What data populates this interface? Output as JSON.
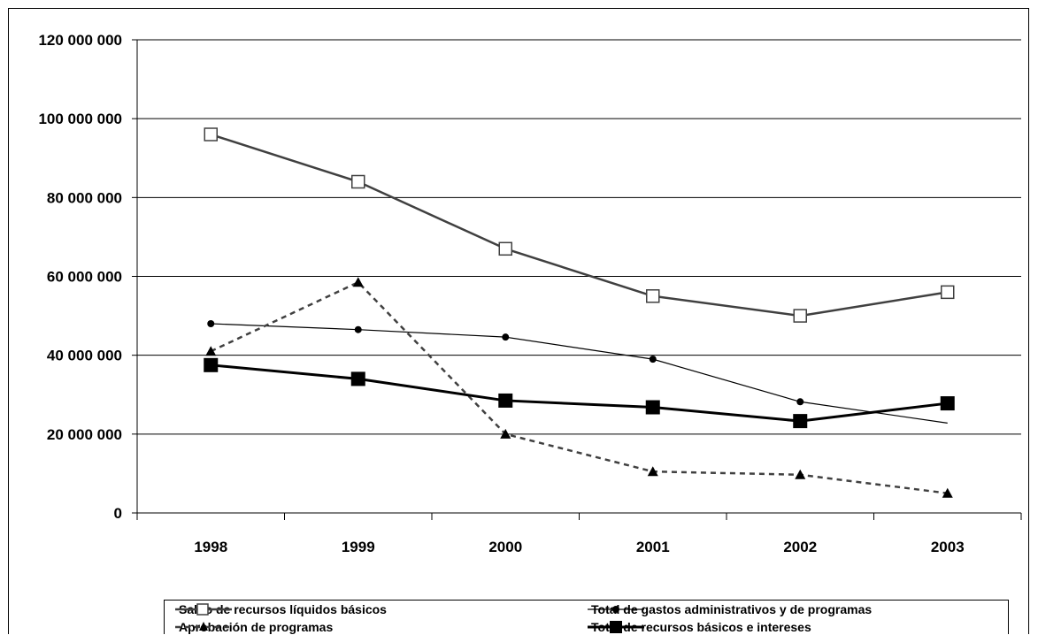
{
  "chart_data": {
    "type": "line",
    "title": "",
    "xlabel": "",
    "ylabel": "",
    "categories": [
      "1998",
      "1999",
      "2000",
      "2001",
      "2002",
      "2003"
    ],
    "ylim": [
      0,
      120000000
    ],
    "yticks": [
      {
        "value": 0,
        "label": "0"
      },
      {
        "value": 20000000,
        "label": "20 000 000"
      },
      {
        "value": 40000000,
        "label": "40 000 000"
      },
      {
        "value": 60000000,
        "label": "60 000 000"
      },
      {
        "value": 80000000,
        "label": "80 000 000"
      },
      {
        "value": 100000000,
        "label": "100 000 000"
      },
      {
        "value": 120000000,
        "label": "120 000 000"
      }
    ],
    "grid": "horizontal",
    "legend_position": "bottom",
    "series": [
      {
        "key": "saldo",
        "name": "Saldo de recursos líquidos básicos",
        "values": [
          96000000,
          84000000,
          67000000,
          55000000,
          50000000,
          56000000
        ],
        "color": "#404040",
        "line": "solid",
        "marker": "open-square"
      },
      {
        "key": "gastos",
        "name": "Total de gastos administrativos y de programas",
        "values": [
          48000000,
          46500000,
          44600000,
          39000000,
          28200000,
          22800000
        ],
        "color": "#000000",
        "line": "thin",
        "marker": "circle"
      },
      {
        "key": "aprobacion",
        "name": "Aprobación de programas",
        "values": [
          41000000,
          58500000,
          20000000,
          10500000,
          9700000,
          5000000
        ],
        "color": "#404040",
        "line": "dashed",
        "marker": "triangle"
      },
      {
        "key": "total",
        "name": "Total de recursos básicos e intereses",
        "values": [
          37500000,
          34000000,
          28500000,
          26800000,
          23300000,
          27800000
        ],
        "color": "#000000",
        "line": "thick",
        "marker": "filled-square"
      }
    ]
  }
}
